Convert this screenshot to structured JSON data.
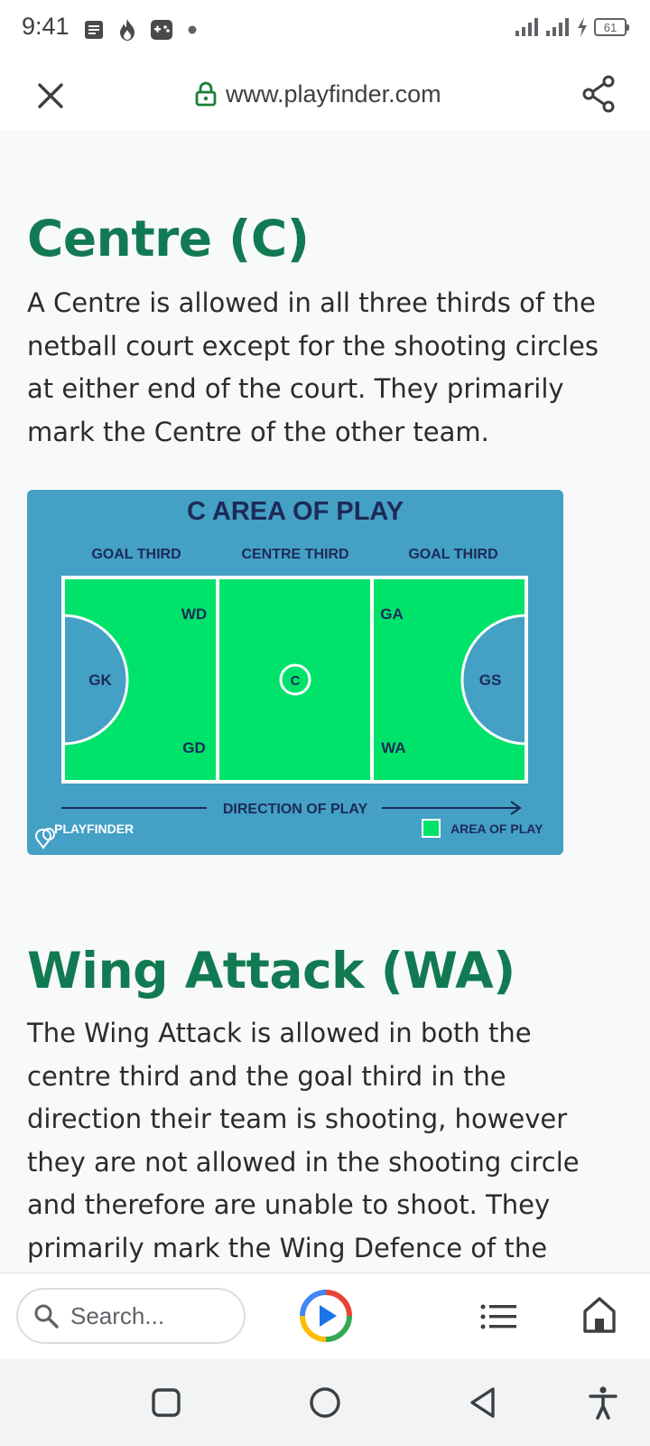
{
  "status_bar": {
    "time": "9:41",
    "battery": "61",
    "left_icons": [
      "notes-icon",
      "fire-icon",
      "gamepad-icon",
      "dot-icon"
    ],
    "right_icons": [
      "signal-icon",
      "signal-icon",
      "charging-icon",
      "battery-icon"
    ]
  },
  "url_bar": {
    "url": "www.playfinder.com"
  },
  "sections": [
    {
      "heading": "Centre (C)",
      "lines": [
        "A Centre is allowed in all three thirds of the",
        "netball court except for the shooting circles",
        "at either end of the court. They primarily",
        "mark the Centre of the other team."
      ]
    },
    {
      "heading": "Wing Attack (WA)",
      "lines": [
        "The Wing Attack is allowed in both the",
        "centre third and the goal third in the",
        "direction their team is shooting, however",
        "they are not allowed in the shooting circle",
        "and therefore are unable to shoot. They",
        "primarily mark the Wing Defence of the"
      ]
    }
  ],
  "diagram": {
    "title": "C AREA OF PLAY",
    "thirds": [
      "GOAL THIRD",
      "CENTRE THIRD",
      "GOAL THIRD"
    ],
    "positions": {
      "wd": "WD",
      "gk": "GK",
      "gd": "GD",
      "c": "C",
      "ga": "GA",
      "gs": "GS",
      "wa": "WA"
    },
    "direction": "DIRECTION OF PLAY",
    "brand": "PLAYFINDER",
    "legend": "AREA OF PLAY",
    "colors": {
      "background": "#44a0c5",
      "area": "#00e36b",
      "lines": "#ffffff",
      "text": "#1d2a57"
    }
  },
  "bottom_bar": {
    "search_placeholder": "Search..."
  },
  "colors": {
    "heading": "#127a52",
    "secure_lock": "#188038"
  }
}
